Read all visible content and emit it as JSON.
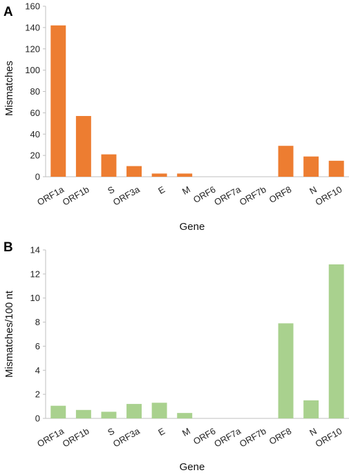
{
  "chart_data": [
    {
      "panel": "A",
      "type": "bar",
      "categories": [
        "ORF1a",
        "ORF1b",
        "S",
        "ORF3a",
        "E",
        "M",
        "ORF6",
        "ORF7a",
        "ORF7b",
        "ORF8",
        "N",
        "ORF10"
      ],
      "values": [
        142,
        57,
        21,
        10,
        3,
        3,
        0,
        0,
        0,
        29,
        19,
        15
      ],
      "xlabel": "Gene",
      "ylabel": "Mismatches",
      "ylim": [
        0,
        160
      ],
      "yticks": [
        0,
        20,
        40,
        60,
        80,
        100,
        120,
        140,
        160
      ],
      "color": "#ED7D31",
      "grid": false
    },
    {
      "panel": "B",
      "type": "bar",
      "categories": [
        "ORF1a",
        "ORF1b",
        "S",
        "ORF3a",
        "E",
        "M",
        "ORF6",
        "ORF7a",
        "ORF7b",
        "ORF8",
        "N",
        "ORF10"
      ],
      "values": [
        1.05,
        0.7,
        0.55,
        1.2,
        1.3,
        0.45,
        0,
        0,
        0,
        7.9,
        1.5,
        12.8
      ],
      "xlabel": "Gene",
      "ylabel": "Mismatches/100 nt",
      "ylim": [
        0,
        14
      ],
      "yticks": [
        0,
        2,
        4,
        6,
        8,
        10,
        12,
        14
      ],
      "color": "#A9D18E",
      "grid": false
    }
  ]
}
